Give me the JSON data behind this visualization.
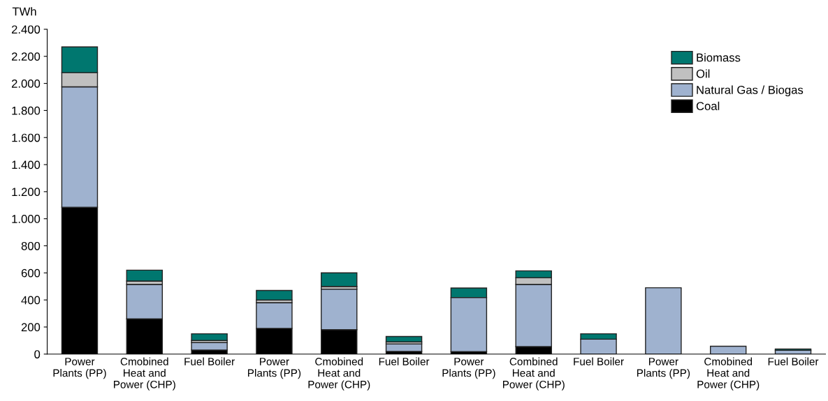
{
  "chart_data": {
    "type": "bar",
    "stacked": true,
    "ylabel": "TWh",
    "categories": [
      "Power\nPlants (PP)",
      "Cmobined\nHeat and\nPower (CHP)",
      "Fuel Boiler",
      "Power\nPlants (PP)",
      "Cmobined\nHeat and\nPower (CHP)",
      "Fuel Boiler",
      "Power\nPlants (PP)",
      "Combined\nHeat and\nPower (CHP)",
      "Fuel Boiler",
      "Power\nPlants (PP)",
      "Cmobined\nHeat and\nPower (CHP)",
      "Fuel Boiler"
    ],
    "series": [
      {
        "name": "Coal",
        "color": "#000000",
        "values": [
          1085,
          260,
          30,
          190,
          180,
          20,
          18,
          55,
          0,
          0,
          0,
          0
        ]
      },
      {
        "name": "Natural Gas / Biogas",
        "color": "#9fb2cf",
        "values": [
          890,
          255,
          55,
          190,
          300,
          55,
          400,
          460,
          110,
          490,
          58,
          28
        ]
      },
      {
        "name": "Oil",
        "color": "#c0c0c0",
        "values": [
          105,
          25,
          15,
          20,
          20,
          15,
          0,
          50,
          0,
          0,
          0,
          0
        ]
      },
      {
        "name": "Biomass",
        "color": "#00776f",
        "values": [
          190,
          80,
          50,
          70,
          100,
          40,
          70,
          50,
          40,
          0,
          0,
          10
        ]
      }
    ],
    "ylim": [
      0,
      2400
    ],
    "yticks": [
      0,
      200,
      400,
      600,
      800,
      {
        "value": 1000,
        "label": "1.000"
      },
      {
        "value": 1200,
        "label": "1.200"
      },
      {
        "value": 1400,
        "label": "1.400"
      },
      {
        "value": 1600,
        "label": "1.600"
      },
      {
        "value": 1800,
        "label": "1.800"
      },
      {
        "value": 2000,
        "label": "2.000"
      },
      {
        "value": 2200,
        "label": "2.200"
      },
      {
        "value": 2400,
        "label": "2.400"
      }
    ],
    "legend": "top right",
    "grid": false
  }
}
